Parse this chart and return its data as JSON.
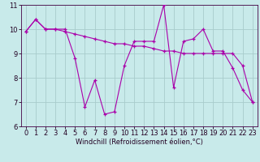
{
  "x": [
    0,
    1,
    2,
    3,
    4,
    5,
    6,
    7,
    8,
    9,
    10,
    11,
    12,
    13,
    14,
    15,
    16,
    17,
    18,
    19,
    20,
    21,
    22,
    23
  ],
  "line1": [
    9.9,
    10.4,
    10.0,
    10.0,
    10.0,
    8.8,
    6.8,
    7.9,
    6.5,
    6.6,
    8.5,
    9.5,
    9.5,
    9.5,
    11.0,
    7.6,
    9.5,
    9.6,
    10.0,
    9.1,
    9.1,
    8.4,
    7.5,
    7.0
  ],
  "line2": [
    9.9,
    10.4,
    10.0,
    10.0,
    9.9,
    9.8,
    9.7,
    9.6,
    9.5,
    9.4,
    9.4,
    9.3,
    9.3,
    9.2,
    9.1,
    9.1,
    9.0,
    9.0,
    9.0,
    9.0,
    9.0,
    9.0,
    8.5,
    7.0
  ],
  "line_color": "#aa00aa",
  "bg_color": "#c8eaea",
  "grid_color": "#a8cccc",
  "xlabel": "Windchill (Refroidissement éolien,°C)",
  "ylim": [
    6,
    11
  ],
  "xlim": [
    -0.5,
    23.5
  ],
  "yticks": [
    6,
    7,
    8,
    9,
    10,
    11
  ],
  "xticks": [
    0,
    1,
    2,
    3,
    4,
    5,
    6,
    7,
    8,
    9,
    10,
    11,
    12,
    13,
    14,
    15,
    16,
    17,
    18,
    19,
    20,
    21,
    22,
    23
  ],
  "tick_fontsize": 6.0,
  "xlabel_fontsize": 6.0,
  "linewidth": 0.8,
  "markersize": 3.5
}
